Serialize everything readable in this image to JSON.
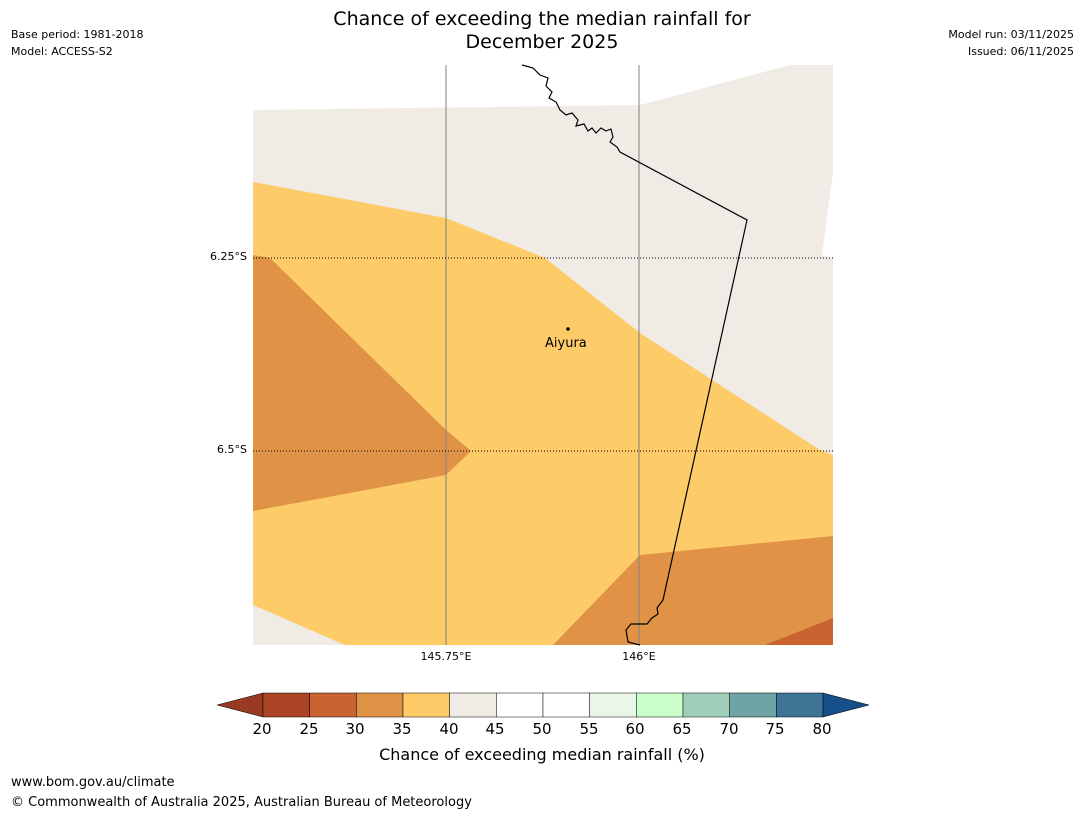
{
  "title": {
    "line1": "Chance of exceeding the median rainfall for",
    "line2": "December 2025"
  },
  "meta_left": {
    "base_period": "Base period: 1981-2018",
    "model": "Model: ACCESS-S2"
  },
  "meta_right": {
    "model_run": "Model run: 03/11/2025",
    "issued": "Issued: 06/11/2025"
  },
  "map": {
    "lat_labels": [
      "6.25°S",
      "6.5°S"
    ],
    "lon_labels": [
      "145.75°E",
      "146°E"
    ],
    "town": {
      "name": "Aiyura"
    },
    "zones": [
      {
        "range": "40-45",
        "color": "#f0ebe5"
      },
      {
        "range": "35-40",
        "color": "#fdcb67"
      },
      {
        "range": "30-35",
        "color": "#e09346"
      },
      {
        "range": "25-30",
        "color": "#c9632f"
      }
    ]
  },
  "colorbar": {
    "label": "Chance of exceeding median rainfall (%)",
    "ticks": [
      "20",
      "25",
      "30",
      "35",
      "40",
      "45",
      "50",
      "55",
      "60",
      "65",
      "70",
      "75",
      "80"
    ],
    "under_color": "#993a24",
    "over_color": "#164f8a",
    "colors": [
      "#ac4426",
      "#c9632f",
      "#e09346",
      "#fdcb67",
      "#f0ebe5",
      "#ffffff",
      "#ffffff",
      "#e9f7e9",
      "#cafecb",
      "#9fcfba",
      "#6fa4a7",
      "#3e7596"
    ]
  },
  "footer": {
    "url": "www.bom.gov.au/climate",
    "copyright": "© Commonwealth of Australia 2025, Australian Bureau of Meteorology"
  }
}
